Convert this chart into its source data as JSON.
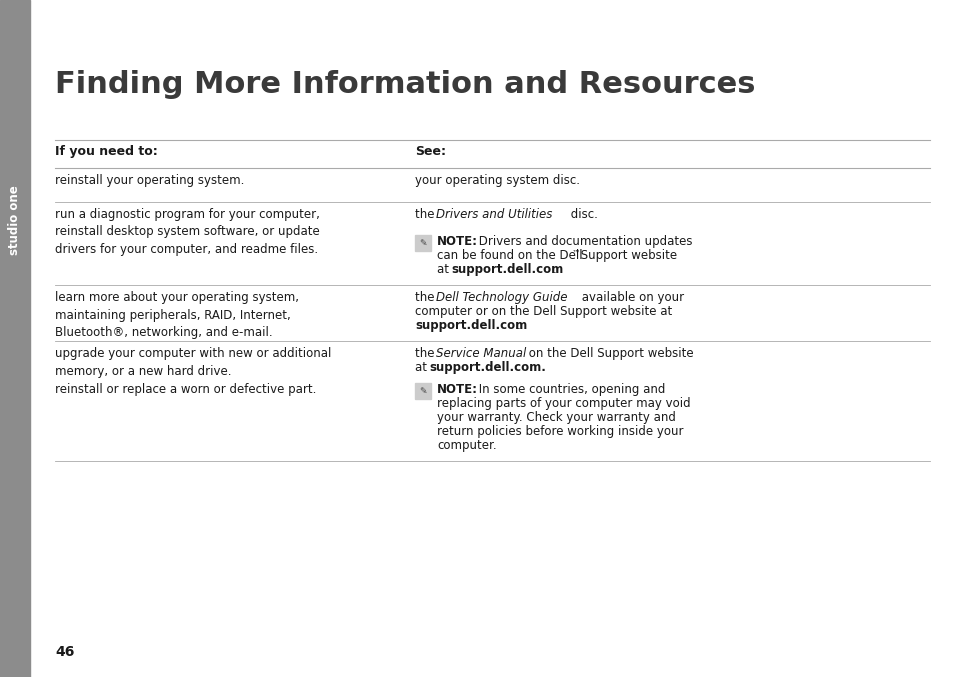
{
  "bg_color": "#ffffff",
  "sidebar_color": "#8c8c8c",
  "title": "Finding More Information and Resources",
  "header_col1": "If you need to:",
  "header_col2": "See:",
  "page_number": "46",
  "text_color": "#1a1a1a",
  "line_color": "#aaaaaa"
}
